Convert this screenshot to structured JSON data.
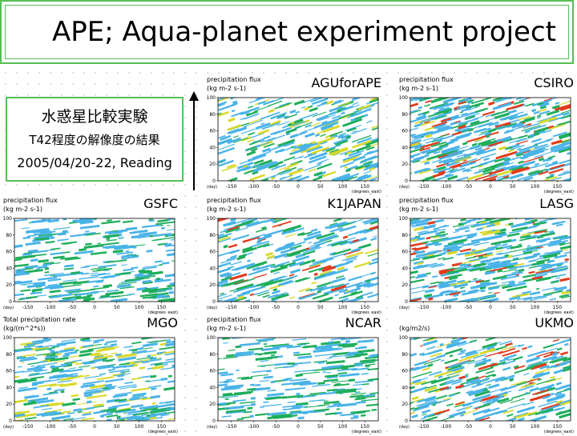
{
  "slide": {
    "title": "APE; Aqua-planet experiment project",
    "info": {
      "line1": "水惑星比較実験",
      "line2": "T42程度の解像度の結果",
      "line3": "2005/04/20-22, Reading"
    }
  },
  "colors": {
    "frame": "#55c055",
    "shade_levels": [
      "#49b3e8",
      "#1fae5a",
      "#d9d92a",
      "#e23b1c"
    ]
  },
  "chart_data": [
    {
      "type": "heatmap",
      "model": "AGUforAPE",
      "title": "precipitation flux",
      "unit": "(kg m-2 s-1)",
      "xlabel": "(degrees_east)",
      "ylabel": "(day)",
      "xlim": [
        -180,
        180
      ],
      "ylim": [
        0,
        100
      ],
      "xticks": [
        -150,
        -100,
        -50,
        0,
        50,
        100,
        150
      ],
      "yticks": [
        0,
        20,
        40,
        60,
        80,
        100
      ],
      "density": 0.55,
      "streak_slope": 0.35,
      "levels_present": 3
    },
    {
      "type": "heatmap",
      "model": "CSIRO",
      "title": "precipitation flux",
      "unit": "(kg m-2 s-1)",
      "xlabel": "(degrees_east)",
      "ylabel": "(day)",
      "xlim": [
        -180,
        180
      ],
      "ylim": [
        0,
        100
      ],
      "xticks": [
        -150,
        -100,
        -50,
        0,
        50,
        100,
        150
      ],
      "yticks": [
        0,
        20,
        40,
        60,
        80,
        100
      ],
      "density": 0.8,
      "streak_slope": 0.3,
      "levels_present": 4
    },
    {
      "type": "heatmap",
      "model": "GSFC",
      "title": "precipitation flux",
      "unit": "(kg m-2 s-1)",
      "xlabel": "(degrees_east)",
      "ylabel": "(day)",
      "xlim": [
        -180,
        180
      ],
      "ylim": [
        0,
        100
      ],
      "xticks": [
        -150,
        -100,
        -50,
        0,
        50,
        100,
        150
      ],
      "yticks": [
        0,
        20,
        40,
        60,
        80,
        100
      ],
      "density": 0.5,
      "streak_slope": 0.12,
      "levels_present": 2
    },
    {
      "type": "heatmap",
      "model": "K1JAPAN",
      "title": "precipitation flux",
      "unit": "(kg m-2 s-1)",
      "xlabel": "(degrees_east)",
      "ylabel": "(day)",
      "xlim": [
        -180,
        180
      ],
      "ylim": [
        0,
        100
      ],
      "xticks": [
        -150,
        -100,
        -50,
        0,
        50,
        100,
        150
      ],
      "yticks": [
        0,
        20,
        40,
        60,
        80,
        100
      ],
      "density": 0.5,
      "streak_slope": 0.3,
      "levels_present": 4
    },
    {
      "type": "heatmap",
      "model": "LASG",
      "title": "precipitation flux",
      "unit": "(kg m-2 s-1)",
      "xlabel": "(degrees_east)",
      "ylabel": "(day)",
      "xlim": [
        -180,
        180
      ],
      "ylim": [
        0,
        100
      ],
      "xticks": [
        -150,
        -100,
        -50,
        0,
        50,
        100,
        150
      ],
      "yticks": [
        0,
        20,
        40,
        60,
        80,
        100
      ],
      "density": 0.7,
      "streak_slope": 0.2,
      "levels_present": 4
    },
    {
      "type": "heatmap",
      "model": "MGO",
      "title": "Total precipitation rate",
      "unit": "(kg/(m^2*s))",
      "xlabel": "(degrees_east)",
      "ylabel": "(day)",
      "xlim": [
        -180,
        180
      ],
      "ylim": [
        0,
        100
      ],
      "xticks": [
        -150,
        -100,
        -50,
        0,
        50,
        100,
        150
      ],
      "yticks": [
        0,
        20,
        40,
        60,
        80,
        100
      ],
      "density": 0.6,
      "streak_slope": 0.15,
      "levels_present": 3
    },
    {
      "type": "heatmap",
      "model": "NCAR",
      "title": "precipitation flux",
      "unit": "(kg m-2 s-1)",
      "xlabel": "(degrees_east)",
      "ylabel": "(day)",
      "xlim": [
        -180,
        180
      ],
      "ylim": [
        0,
        100
      ],
      "xticks": [
        -150,
        -100,
        -50,
        0,
        50,
        100,
        150
      ],
      "yticks": [
        0,
        20,
        40,
        60,
        80,
        100
      ],
      "density": 0.45,
      "streak_slope": 0.1,
      "levels_present": 2
    },
    {
      "type": "heatmap",
      "model": "UKMO",
      "title": "",
      "unit": "(kg/m2/s)",
      "xlabel": "(degrees_east)",
      "ylabel": "(day)",
      "xlim": [
        -180,
        180
      ],
      "ylim": [
        0,
        100
      ],
      "xticks": [
        -150,
        -100,
        -50,
        0,
        50,
        100,
        150
      ],
      "yticks": [
        0,
        20,
        40,
        60,
        80,
        100
      ],
      "density": 0.55,
      "streak_slope": 0.3,
      "levels_present": 4
    }
  ]
}
